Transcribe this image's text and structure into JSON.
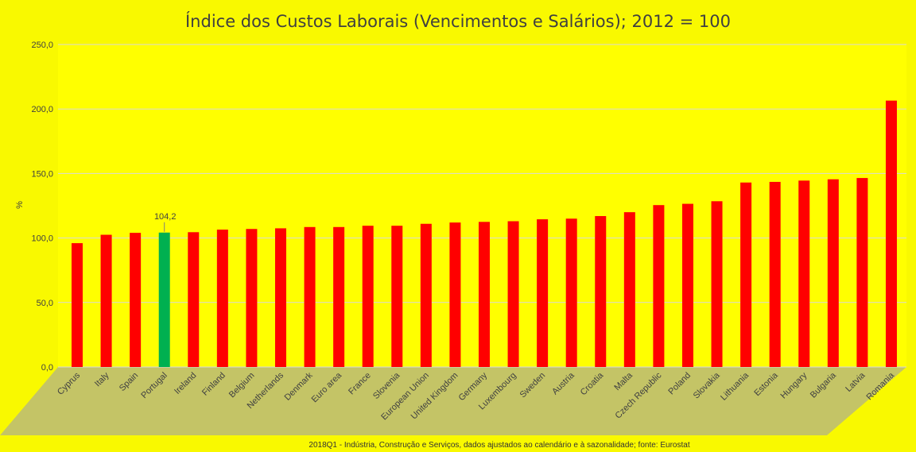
{
  "chart_data": {
    "type": "bar",
    "title": "Índice dos Custos Laborais (Vencimentos e Salários); 2012 = 100",
    "ylabel": "%",
    "xlabel": "",
    "ylim": [
      0,
      250
    ],
    "yticks": [
      "0,0",
      "50,0",
      "100,0",
      "150,0",
      "200,0",
      "250,0"
    ],
    "grid": true,
    "legend": "none",
    "categories": [
      "Cyprus",
      "Italy",
      "Spain",
      "Portugal",
      "Ireland",
      "Finland",
      "Belgium",
      "Netherlands",
      "Denmark",
      "Euro area",
      "France",
      "Slovenia",
      "European Union",
      "United Kingdom",
      "Germany",
      "Luxembourg",
      "Sweden",
      "Austria",
      "Croatia",
      "Malta",
      "Czech Republic",
      "Poland",
      "Slovakia",
      "Lithuania",
      "Estonia",
      "Hungary",
      "Bulgaria",
      "Latvia",
      "Romania"
    ],
    "values": [
      96,
      102.5,
      104,
      104.2,
      104.5,
      106.5,
      107,
      107.5,
      108.5,
      108.5,
      109.5,
      109.5,
      111,
      112,
      112.5,
      113,
      114.5,
      115,
      117,
      120,
      125.5,
      126.5,
      128.5,
      143,
      143.5,
      144.5,
      145.5,
      146.5,
      206.5
    ],
    "highlight": {
      "category": "Portugal",
      "label": "104,2",
      "color": "#00b050"
    },
    "bar_color": "#ff0000",
    "note": "2018Q1 - Indústria, Construção e Serviços, dados ajustados ao calendário e à sazonalidade;  fonte: Eurostat"
  }
}
